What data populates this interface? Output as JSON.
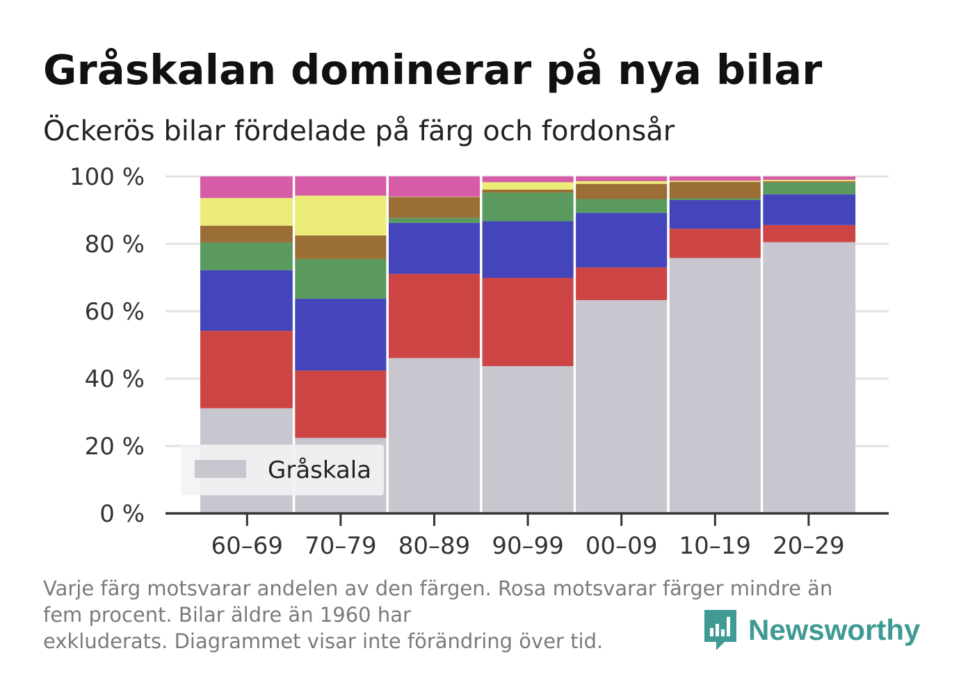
{
  "header": {
    "title": "Gråskalan dominerar på nya bilar",
    "subtitle": "Öckerös bilar fördelade på färg och fordonsår"
  },
  "footnote": {
    "line1": "Varje färg motsvarar andelen av den färgen. Rosa motsvarar färger mindre än",
    "line2": "fem procent. Bilar äldre än 1960 har",
    "line3": "exkluderats. Diagrammet visar inte förändring över tid."
  },
  "brand": {
    "name": "Newsworthy",
    "icon": "newsworthy-logo-icon",
    "color": "#3e9a92"
  },
  "chart_data": {
    "type": "bar",
    "stacked": true,
    "categories": [
      "60–69",
      "70–79",
      "80–89",
      "90–99",
      "00–09",
      "10–19",
      "20–29"
    ],
    "ylim": [
      0,
      100
    ],
    "yticks": [
      0,
      20,
      40,
      60,
      80,
      100
    ],
    "ytick_labels": [
      "0 %",
      "20 %",
      "40 %",
      "60 %",
      "80 %",
      "100 %"
    ],
    "grid": true,
    "legend": {
      "position": "bottom-left",
      "entries": [
        "Gråskala"
      ]
    },
    "series": [
      {
        "name": "Gråskala",
        "color": "#c8c7d0",
        "values": [
          31.2,
          22.4,
          46.1,
          43.7,
          63.3,
          75.8,
          80.5
        ]
      },
      {
        "color": "#cc4444",
        "values": [
          23.0,
          20.0,
          25.0,
          26.2,
          9.7,
          8.7,
          5.1
        ]
      },
      {
        "color": "#4444bb",
        "values": [
          18.0,
          21.3,
          15.1,
          16.8,
          16.2,
          8.5,
          9.1
        ]
      },
      {
        "color": "#5a9a5e",
        "values": [
          8.2,
          11.8,
          1.5,
          8.5,
          4.1,
          0.5,
          3.5
        ]
      },
      {
        "color": "#9a6e35",
        "values": [
          5.0,
          7.0,
          6.2,
          0.9,
          4.5,
          4.9,
          0.4
        ]
      },
      {
        "color": "#ecec78",
        "values": [
          8.2,
          11.8,
          0.1,
          2.2,
          0.8,
          0.3,
          0.4
        ]
      },
      {
        "color": "#d65ca8",
        "values": [
          6.4,
          5.7,
          6.0,
          1.7,
          1.4,
          1.3,
          1.0
        ]
      }
    ]
  }
}
